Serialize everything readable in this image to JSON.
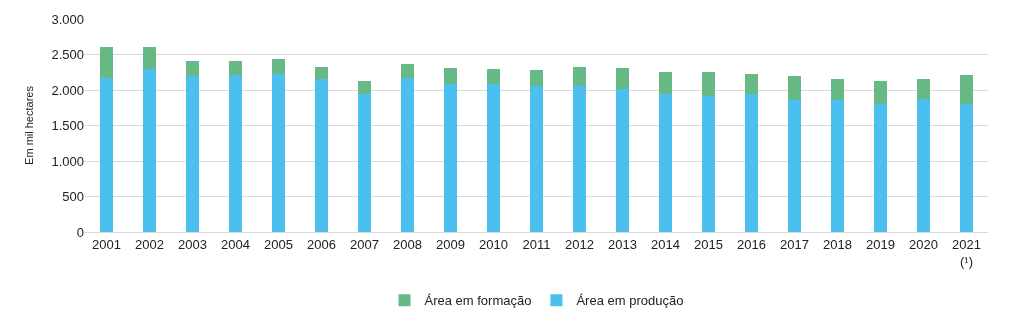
{
  "chart_data": {
    "type": "bar",
    "stacked": true,
    "ylabel": "Em mil hectares",
    "categories": [
      "2001",
      "2002",
      "2003",
      "2004",
      "2005",
      "2006",
      "2007",
      "2008",
      "2009",
      "2010",
      "2011",
      "2012",
      "2013",
      "2014",
      "2015",
      "2016",
      "2017",
      "2018",
      "2019",
      "2020",
      "2021\n(¹)"
    ],
    "series": [
      {
        "name": "Área em produção",
        "color": "#4bc0ee",
        "values": [
          2170,
          2300,
          2200,
          2210,
          2220,
          2150,
          1940,
          2170,
          2090,
          2080,
          2060,
          2050,
          2010,
          1940,
          1920,
          1940,
          1860,
          1860,
          1800,
          1880,
          1800
        ]
      },
      {
        "name": "Área em formação",
        "color": "#67b985",
        "values": [
          440,
          300,
          210,
          200,
          220,
          170,
          190,
          190,
          220,
          210,
          220,
          280,
          300,
          310,
          330,
          280,
          340,
          290,
          330,
          280,
          410
        ]
      }
    ],
    "ylim": [
      0,
      3000
    ],
    "yticks": [
      0,
      500,
      {
        "value": 1000,
        "label": "1.000"
      },
      {
        "value": 1500,
        "label": "1.500"
      },
      {
        "value": 2000,
        "label": "2.000"
      },
      {
        "value": 2500,
        "label": "2.500"
      },
      {
        "value": 3000,
        "label": "3.000"
      }
    ],
    "grid": "y",
    "legend": "bottom"
  }
}
